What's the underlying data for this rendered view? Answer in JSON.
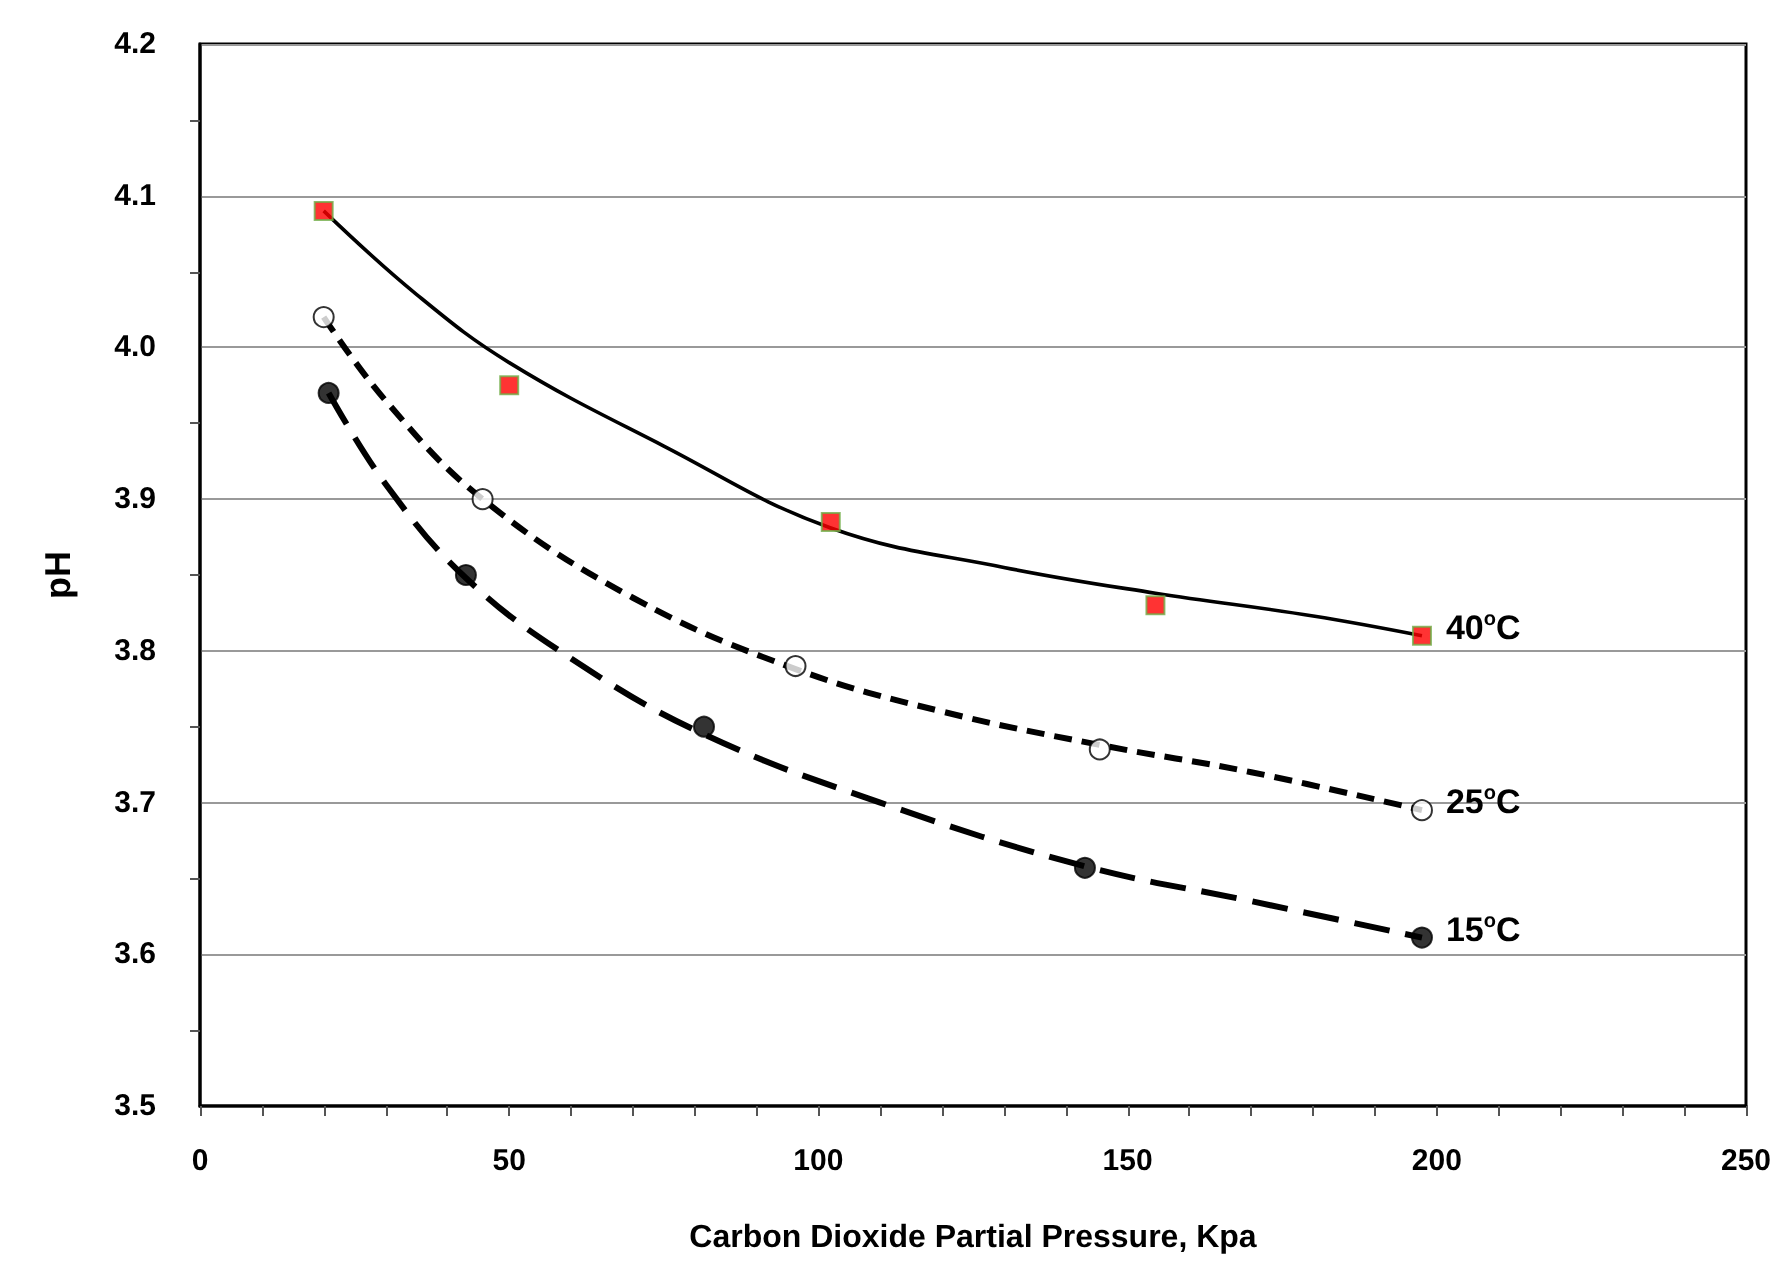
{
  "chart_data": {
    "type": "scatter",
    "xlabel": "Carbon Dioxide Partial Pressure, Kpa",
    "ylabel": "pH",
    "xlim": [
      0,
      250
    ],
    "xticks": [
      0,
      50,
      100,
      150,
      200,
      250
    ],
    "ylim": [
      3.5,
      4.2
    ],
    "yticks": [
      3.5,
      3.6,
      3.7,
      3.8,
      3.9,
      {
        "value": 4,
        "label": "4.0"
      },
      4.1,
      4.2
    ],
    "grid": "y",
    "series": [
      {
        "marker": "square",
        "color": "#ff0000",
        "x": [
          20,
          50,
          102,
          154.5,
          197.6
        ],
        "values": [
          4.09,
          3.975,
          3.885,
          3.83,
          3.81
        ]
      },
      {
        "marker": "circle",
        "color": "#ffffff",
        "x": [
          20,
          45.7,
          96.3,
          145.5,
          197.6
        ],
        "values": [
          4.02,
          3.9,
          3.79,
          3.735,
          3.695
        ]
      },
      {
        "marker": "circle",
        "color": "#000000",
        "x": [
          20.8,
          43,
          81.5,
          143.1,
          197.6
        ],
        "values": [
          3.97,
          3.85,
          3.75,
          3.657,
          3.611
        ]
      },
      {
        "type": "line",
        "marker": "none",
        "line_style": "solid",
        "color": "#000000",
        "x": [
          20,
          35,
          50,
          75,
          102,
          130,
          154.5,
          180,
          197.6
        ],
        "values": [
          4.09,
          4.035,
          3.99,
          3.935,
          3.881,
          3.855,
          3.838,
          3.823,
          3.81
        ]
      },
      {
        "type": "line",
        "marker": "none",
        "line_style": "dashed",
        "color": "#000000",
        "x": [
          20,
          30,
          45.7,
          70,
          96.3,
          120,
          145.5,
          170,
          197.6
        ],
        "values": [
          4.02,
          3.965,
          3.9,
          3.835,
          3.788,
          3.76,
          3.738,
          3.72,
          3.695
        ]
      },
      {
        "type": "line",
        "marker": "none",
        "line_style": "dashed",
        "color": "#000000",
        "x": [
          20.8,
          30,
          43,
          60,
          81.5,
          110,
          143.1,
          170,
          197.6
        ],
        "values": [
          3.97,
          3.91,
          3.848,
          3.795,
          3.745,
          3.7,
          3.658,
          3.635,
          3.611
        ]
      }
    ],
    "annotations": [
      "40$^{o}$C",
      "25$^{o}$C",
      "15$^{o}$C"
    ]
  }
}
